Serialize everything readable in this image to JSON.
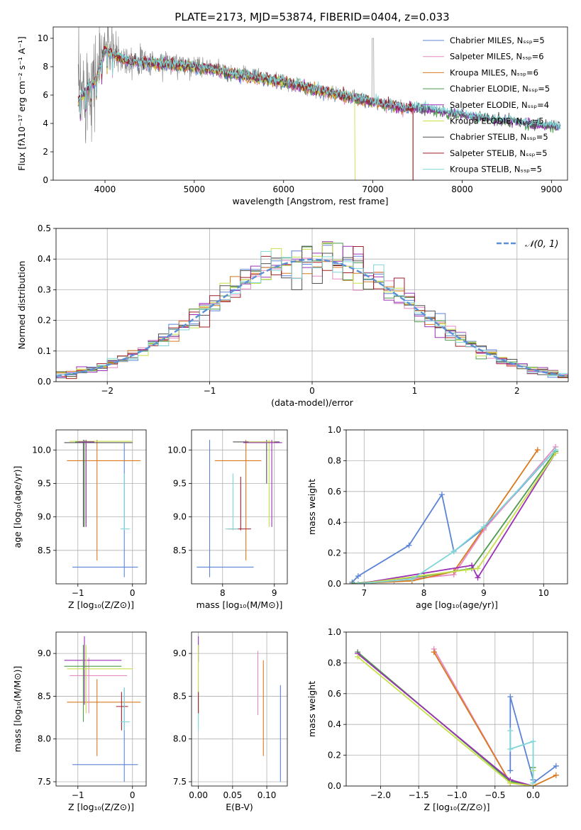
{
  "title": "PLATE=2173, MJD=53874, FIBERID=0404, z=0.033",
  "colors": {
    "s0": "#5b84d6",
    "s1": "#e78ac3",
    "s2": "#d97a1e",
    "s3": "#4c9a4c",
    "s4": "#9b30b6",
    "s5": "#c8e04a",
    "s6": "#505050",
    "s7": "#a01e2a",
    "s8": "#7fd6d8",
    "data": "#808080",
    "gauss": "#5b8fd6"
  },
  "chart_data": [
    {
      "id": "spectrum",
      "type": "line",
      "title": "PLATE=2173, MJD=53874, FIBERID=0404, z=0.033",
      "xlabel": "wavelength [Angstrom, rest frame]",
      "ylabel": "Flux [fλ10⁻¹⁷ erg cm⁻² s⁻¹ A⁻¹]",
      "xlim": [
        3420,
        9180
      ],
      "ylim": [
        0,
        10.8
      ],
      "xticks": [
        4000,
        5000,
        6000,
        7000,
        8000,
        9000
      ],
      "yticks": [
        0,
        2,
        4,
        6,
        8,
        10
      ],
      "legend_loc": "upper right",
      "legend": [
        "Chabrier MILES, Nₛₛₚ=5",
        "Salpeter MILES, Nₛₛₚ=6",
        "Kroupa MILES, Nₛₛₚ=6",
        "Chabrier ELODIE, Nₛₛₚ=5",
        "Salpeter ELODIE, Nₛₛₚ=4",
        "Kroupa ELODIE, Nₛₛₚ=5",
        "Chabrier STELIB, Nₛₛₚ=5",
        "Salpeter STELIB, Nₛₛₚ=5",
        "Kroupa STELIB, Nₛₛₚ=5"
      ],
      "data_curve": {
        "x": [
          3700,
          3800,
          3900,
          4000,
          4100,
          4200,
          4400,
          4600,
          4800,
          5000,
          5200,
          5400,
          5600,
          5800,
          6000,
          6200,
          6400,
          6600,
          6800,
          7000,
          7200,
          7400,
          7600,
          7800,
          8000,
          8200,
          8400,
          8600,
          8800,
          9000,
          9100
        ],
        "y": [
          6.0,
          6.6,
          7.4,
          9.6,
          8.9,
          8.6,
          8.4,
          8.3,
          8.2,
          8.1,
          7.9,
          7.6,
          7.5,
          7.2,
          7.0,
          6.6,
          6.4,
          6.1,
          5.9,
          5.6,
          5.4,
          5.1,
          5.0,
          4.8,
          4.6,
          4.4,
          4.2,
          4.1,
          3.9,
          3.8,
          3.8
        ],
        "noise": [
          4.0,
          3.5,
          3.0,
          2.0,
          1.6,
          1.2,
          0.9,
          0.9,
          0.8,
          0.7,
          0.6,
          0.5,
          0.5,
          0.5,
          0.4,
          0.4,
          0.4,
          0.4,
          0.4,
          0.3,
          0.3,
          0.3,
          0.2,
          0.2,
          0.2,
          0.2,
          0.2,
          0.2,
          0.2,
          0.15,
          0.15
        ]
      },
      "model_curve": {
        "x": [
          3700,
          3800,
          3900,
          4000,
          4100,
          4200,
          4400,
          4600,
          4800,
          5000,
          5200,
          5400,
          5600,
          5800,
          6000,
          6200,
          6400,
          6600,
          6800,
          7000,
          7200,
          7400
        ],
        "y": [
          5.6,
          6.4,
          7.0,
          9.2,
          8.8,
          8.5,
          8.3,
          8.2,
          8.1,
          8.0,
          7.8,
          7.5,
          7.3,
          7.1,
          6.9,
          6.6,
          6.3,
          6.0,
          5.8,
          5.5,
          5.3,
          5.0
        ]
      }
    },
    {
      "id": "residuals",
      "type": "bar",
      "xlabel": "(data-model)/error",
      "ylabel": "Normed distribution",
      "xlim": [
        -2.5,
        2.5
      ],
      "ylim": [
        0,
        0.5
      ],
      "xticks": [
        -2,
        -1,
        0,
        1,
        2
      ],
      "yticks": [
        0.0,
        0.1,
        0.2,
        0.3,
        0.4,
        0.5
      ],
      "bin_width": 0.1,
      "legend": [
        "𝒩(0, 1)"
      ],
      "legend_loc": "upper right",
      "gaussian": {
        "mean": 0,
        "sigma": 1
      }
    },
    {
      "id": "age-vs-Z",
      "type": "errorbar",
      "xlabel": "Z [log₁₀(Z/Z⊙)]",
      "ylabel": "age  [log₁₀(age/yr)]",
      "xlim": [
        -1.4,
        0.25
      ],
      "ylim": [
        8.0,
        10.3
      ],
      "xticks": [
        -1,
        0
      ],
      "yticks": [
        8.5,
        9.0,
        9.5,
        10.0
      ],
      "points": [
        {
          "s": 0,
          "x": -0.15,
          "y": 8.25,
          "xe": [
            -1.1,
            0.1
          ],
          "ye": [
            8.1,
            10.1
          ]
        },
        {
          "s": 2,
          "x": -0.65,
          "y": 9.84,
          "xe": [
            -1.2,
            0.15
          ],
          "ye": [
            8.35,
            10.15
          ]
        },
        {
          "s": 6,
          "x": -0.9,
          "y": 10.11,
          "xe": [
            -1.25,
            0.0
          ],
          "ye": [
            8.85,
            10.15
          ]
        },
        {
          "s": 5,
          "x": -0.85,
          "y": 10.13,
          "xe": [
            -1.15,
            0.0
          ],
          "ye": [
            8.9,
            10.15
          ]
        },
        {
          "s": 8,
          "x": -0.15,
          "y": 8.82,
          "xe": [
            -0.22,
            -0.05
          ],
          "ye": [
            8.8,
            9.65
          ]
        },
        {
          "s": 3,
          "x": -0.88,
          "y": 10.12,
          "xe": [
            -1.05,
            -0.7
          ],
          "ye": [
            8.85,
            10.15
          ]
        },
        {
          "s": 4,
          "x": -0.85,
          "y": 10.12,
          "xe": [
            -1.0,
            -0.7
          ],
          "ye": [
            8.85,
            10.15
          ]
        }
      ]
    },
    {
      "id": "age-vs-mass",
      "type": "errorbar",
      "xlabel": "mass [log₁₀(M/M⊙)]",
      "ylabel": "",
      "xlim": [
        7.4,
        9.25
      ],
      "ylim": [
        8.0,
        10.3
      ],
      "xticks": [
        8,
        9
      ],
      "yticks": [
        8.5,
        9.0,
        9.5,
        10.0
      ],
      "points": [
        {
          "s": 0,
          "x": 7.75,
          "y": 8.25,
          "xe": [
            7.5,
            8.6
          ],
          "ye": [
            8.1,
            10.15
          ]
        },
        {
          "s": 2,
          "x": 8.45,
          "y": 9.84,
          "xe": [
            7.85,
            8.75
          ],
          "ye": [
            8.35,
            10.15
          ]
        },
        {
          "s": 7,
          "x": 8.35,
          "y": 8.82,
          "xe": [
            8.1,
            8.55
          ],
          "ye": [
            8.8,
            9.6
          ]
        },
        {
          "s": 8,
          "x": 8.2,
          "y": 8.82,
          "xe": [
            8.05,
            8.3
          ],
          "ye": [
            8.8,
            9.65
          ]
        },
        {
          "s": 6,
          "x": 8.85,
          "y": 10.12,
          "xe": [
            8.2,
            9.1
          ],
          "ye": [
            9.5,
            10.15
          ]
        },
        {
          "s": 5,
          "x": 8.9,
          "y": 10.12,
          "xe": [
            8.5,
            9.0
          ],
          "ye": [
            8.85,
            10.15
          ]
        },
        {
          "s": 4,
          "x": 8.95,
          "y": 10.11,
          "xe": [
            8.4,
            9.15
          ],
          "ye": [
            8.85,
            10.15
          ]
        }
      ]
    },
    {
      "id": "massweight-vs-age",
      "type": "line",
      "xlabel": "age  [log₁₀(age/yr)]",
      "ylabel": "mass weight",
      "xlim": [
        6.7,
        10.4
      ],
      "ylim": [
        0,
        1.0
      ],
      "xticks": [
        7,
        8,
        9,
        10
      ],
      "yticks": [
        0.0,
        0.2,
        0.4,
        0.6,
        0.8,
        1.0
      ],
      "series": [
        {
          "s": 0,
          "x": [
            6.8,
            6.9,
            7.75,
            8.3,
            8.5,
            9.0,
            10.2
          ],
          "y": [
            0.01,
            0.05,
            0.25,
            0.58,
            0.21,
            0.36,
            0.87
          ]
        },
        {
          "s": 1,
          "x": [
            6.8,
            7.5,
            8.5,
            9.0,
            10.2
          ],
          "y": [
            0.0,
            0.02,
            0.06,
            0.35,
            0.89
          ]
        },
        {
          "s": 2,
          "x": [
            6.8,
            7.8,
            8.5,
            9.9
          ],
          "y": [
            0.0,
            0.02,
            0.08,
            0.87
          ]
        },
        {
          "s": 3,
          "x": [
            6.8,
            8.0,
            8.8,
            10.2
          ],
          "y": [
            0.0,
            0.05,
            0.1,
            0.86
          ]
        },
        {
          "s": 4,
          "x": [
            6.9,
            8.8,
            8.9,
            10.2
          ],
          "y": [
            0.0,
            0.12,
            0.04,
            0.85
          ]
        },
        {
          "s": 5,
          "x": [
            6.9,
            8.7,
            8.9,
            10.2
          ],
          "y": [
            0.0,
            0.09,
            0.1,
            0.85
          ]
        },
        {
          "s": 8,
          "x": [
            6.9,
            7.8,
            8.5,
            9.0,
            10.2
          ],
          "y": [
            0.0,
            0.03,
            0.21,
            0.37,
            0.87
          ]
        }
      ]
    },
    {
      "id": "mass-vs-Z",
      "type": "errorbar",
      "xlabel": "Z [log₁₀(Z/Z⊙)]",
      "ylabel": "mass [log₁₀(M/M⊙)]",
      "xlim": [
        -1.4,
        0.25
      ],
      "ylim": [
        7.45,
        9.25
      ],
      "xticks": [
        -1,
        0
      ],
      "yticks": [
        7.5,
        8.0,
        8.5,
        9.0
      ],
      "points": [
        {
          "s": 0,
          "x": -0.15,
          "y": 7.7,
          "xe": [
            -1.1,
            0.1
          ],
          "ye": [
            7.5,
            8.6
          ]
        },
        {
          "s": 2,
          "x": -0.65,
          "y": 8.43,
          "xe": [
            -1.2,
            0.15
          ],
          "ye": [
            7.8,
            8.7
          ]
        },
        {
          "s": 1,
          "x": -0.8,
          "y": 8.74,
          "xe": [
            -1.15,
            -0.1
          ],
          "ye": [
            8.3,
            8.95
          ]
        },
        {
          "s": 4,
          "x": -0.88,
          "y": 8.92,
          "xe": [
            -1.25,
            -0.2
          ],
          "ye": [
            8.4,
            9.2
          ]
        },
        {
          "s": 5,
          "x": -0.85,
          "y": 8.82,
          "xe": [
            -1.2,
            0.0
          ],
          "ye": [
            8.3,
            9.1
          ]
        },
        {
          "s": 3,
          "x": -0.9,
          "y": 8.85,
          "xe": [
            -1.25,
            -0.2
          ],
          "ye": [
            8.2,
            9.1
          ]
        },
        {
          "s": 7,
          "x": -0.2,
          "y": 8.38,
          "xe": [
            -0.3,
            -0.08
          ],
          "ye": [
            8.1,
            8.55
          ]
        },
        {
          "s": 8,
          "x": -0.15,
          "y": 8.2,
          "xe": [
            -0.22,
            -0.05
          ],
          "ye": [
            8.1,
            8.6
          ]
        }
      ]
    },
    {
      "id": "mass-vs-EBV",
      "type": "errorbar",
      "xlabel": "E(B-V)",
      "ylabel": "",
      "xlim": [
        -0.01,
        0.13
      ],
      "ylim": [
        7.45,
        9.25
      ],
      "xticks": [
        0.0,
        0.05,
        0.1
      ],
      "tick_labels": [
        "0.00",
        "0.05",
        "0.10"
      ],
      "yticks": [
        7.5,
        8.0,
        8.5,
        9.0
      ],
      "points": [
        {
          "s": 0,
          "x": 0.12,
          "y": 8.1,
          "ye": [
            7.5,
            8.63
          ]
        },
        {
          "s": 2,
          "x": 0.095,
          "y": 8.4,
          "ye": [
            7.8,
            8.92
          ]
        },
        {
          "s": 1,
          "x": 0.087,
          "y": 8.7,
          "ye": [
            8.28,
            9.03
          ]
        },
        {
          "s": 4,
          "x": 0.0,
          "y": 9.1,
          "ye": [
            8.9,
            9.2
          ]
        },
        {
          "s": 5,
          "x": 0.0,
          "y": 8.7,
          "ye": [
            8.3,
            9.1
          ]
        },
        {
          "s": 7,
          "x": 0.0,
          "y": 8.4,
          "ye": [
            8.3,
            8.55
          ]
        },
        {
          "s": 8,
          "x": 0.0,
          "y": 8.2,
          "ye": [
            8.1,
            8.3
          ]
        }
      ]
    },
    {
      "id": "massweight-vs-Z",
      "type": "line",
      "xlabel": "Z [log₁₀(Z/Z⊙)]",
      "ylabel": "mass weight",
      "xlim": [
        -2.45,
        0.45
      ],
      "ylim": [
        0,
        1.0
      ],
      "xticks": [
        -2.0,
        -1.5,
        -1.0,
        -0.5,
        0.0
      ],
      "tick_labels": [
        "−2.0",
        "−1.5",
        "−1.0",
        "−0.5",
        "0.0"
      ],
      "yticks": [
        0.0,
        0.2,
        0.4,
        0.6,
        0.8,
        1.0
      ],
      "series": [
        {
          "s": 0,
          "x": [
            -0.3,
            -0.3,
            0.0,
            0.0,
            0.3
          ],
          "y": [
            0.1,
            0.58,
            0.04,
            0.02,
            0.13
          ]
        },
        {
          "s": 1,
          "x": [
            -1.3,
            -0.3,
            0.0
          ],
          "y": [
            0.89,
            0.02,
            0.0
          ]
        },
        {
          "s": 2,
          "x": [
            -1.3,
            -0.3,
            0.0,
            0.3
          ],
          "y": [
            0.87,
            0.02,
            0.0,
            0.07
          ]
        },
        {
          "s": 3,
          "x": [
            -2.3,
            -0.3,
            0.0,
            0.0
          ],
          "y": [
            0.87,
            0.03,
            0.0,
            0.12
          ]
        },
        {
          "s": 4,
          "x": [
            -2.3,
            -0.3,
            0.0
          ],
          "y": [
            0.86,
            0.04,
            0.0
          ]
        },
        {
          "s": 5,
          "x": [
            -2.3,
            -0.3,
            0.0,
            0.0
          ],
          "y": [
            0.84,
            0.02,
            0.0,
            0.1
          ]
        },
        {
          "s": 8,
          "x": [
            -0.3,
            -0.3,
            0.0,
            0.0
          ],
          "y": [
            0.36,
            0.24,
            0.29,
            0.02
          ]
        }
      ]
    }
  ]
}
